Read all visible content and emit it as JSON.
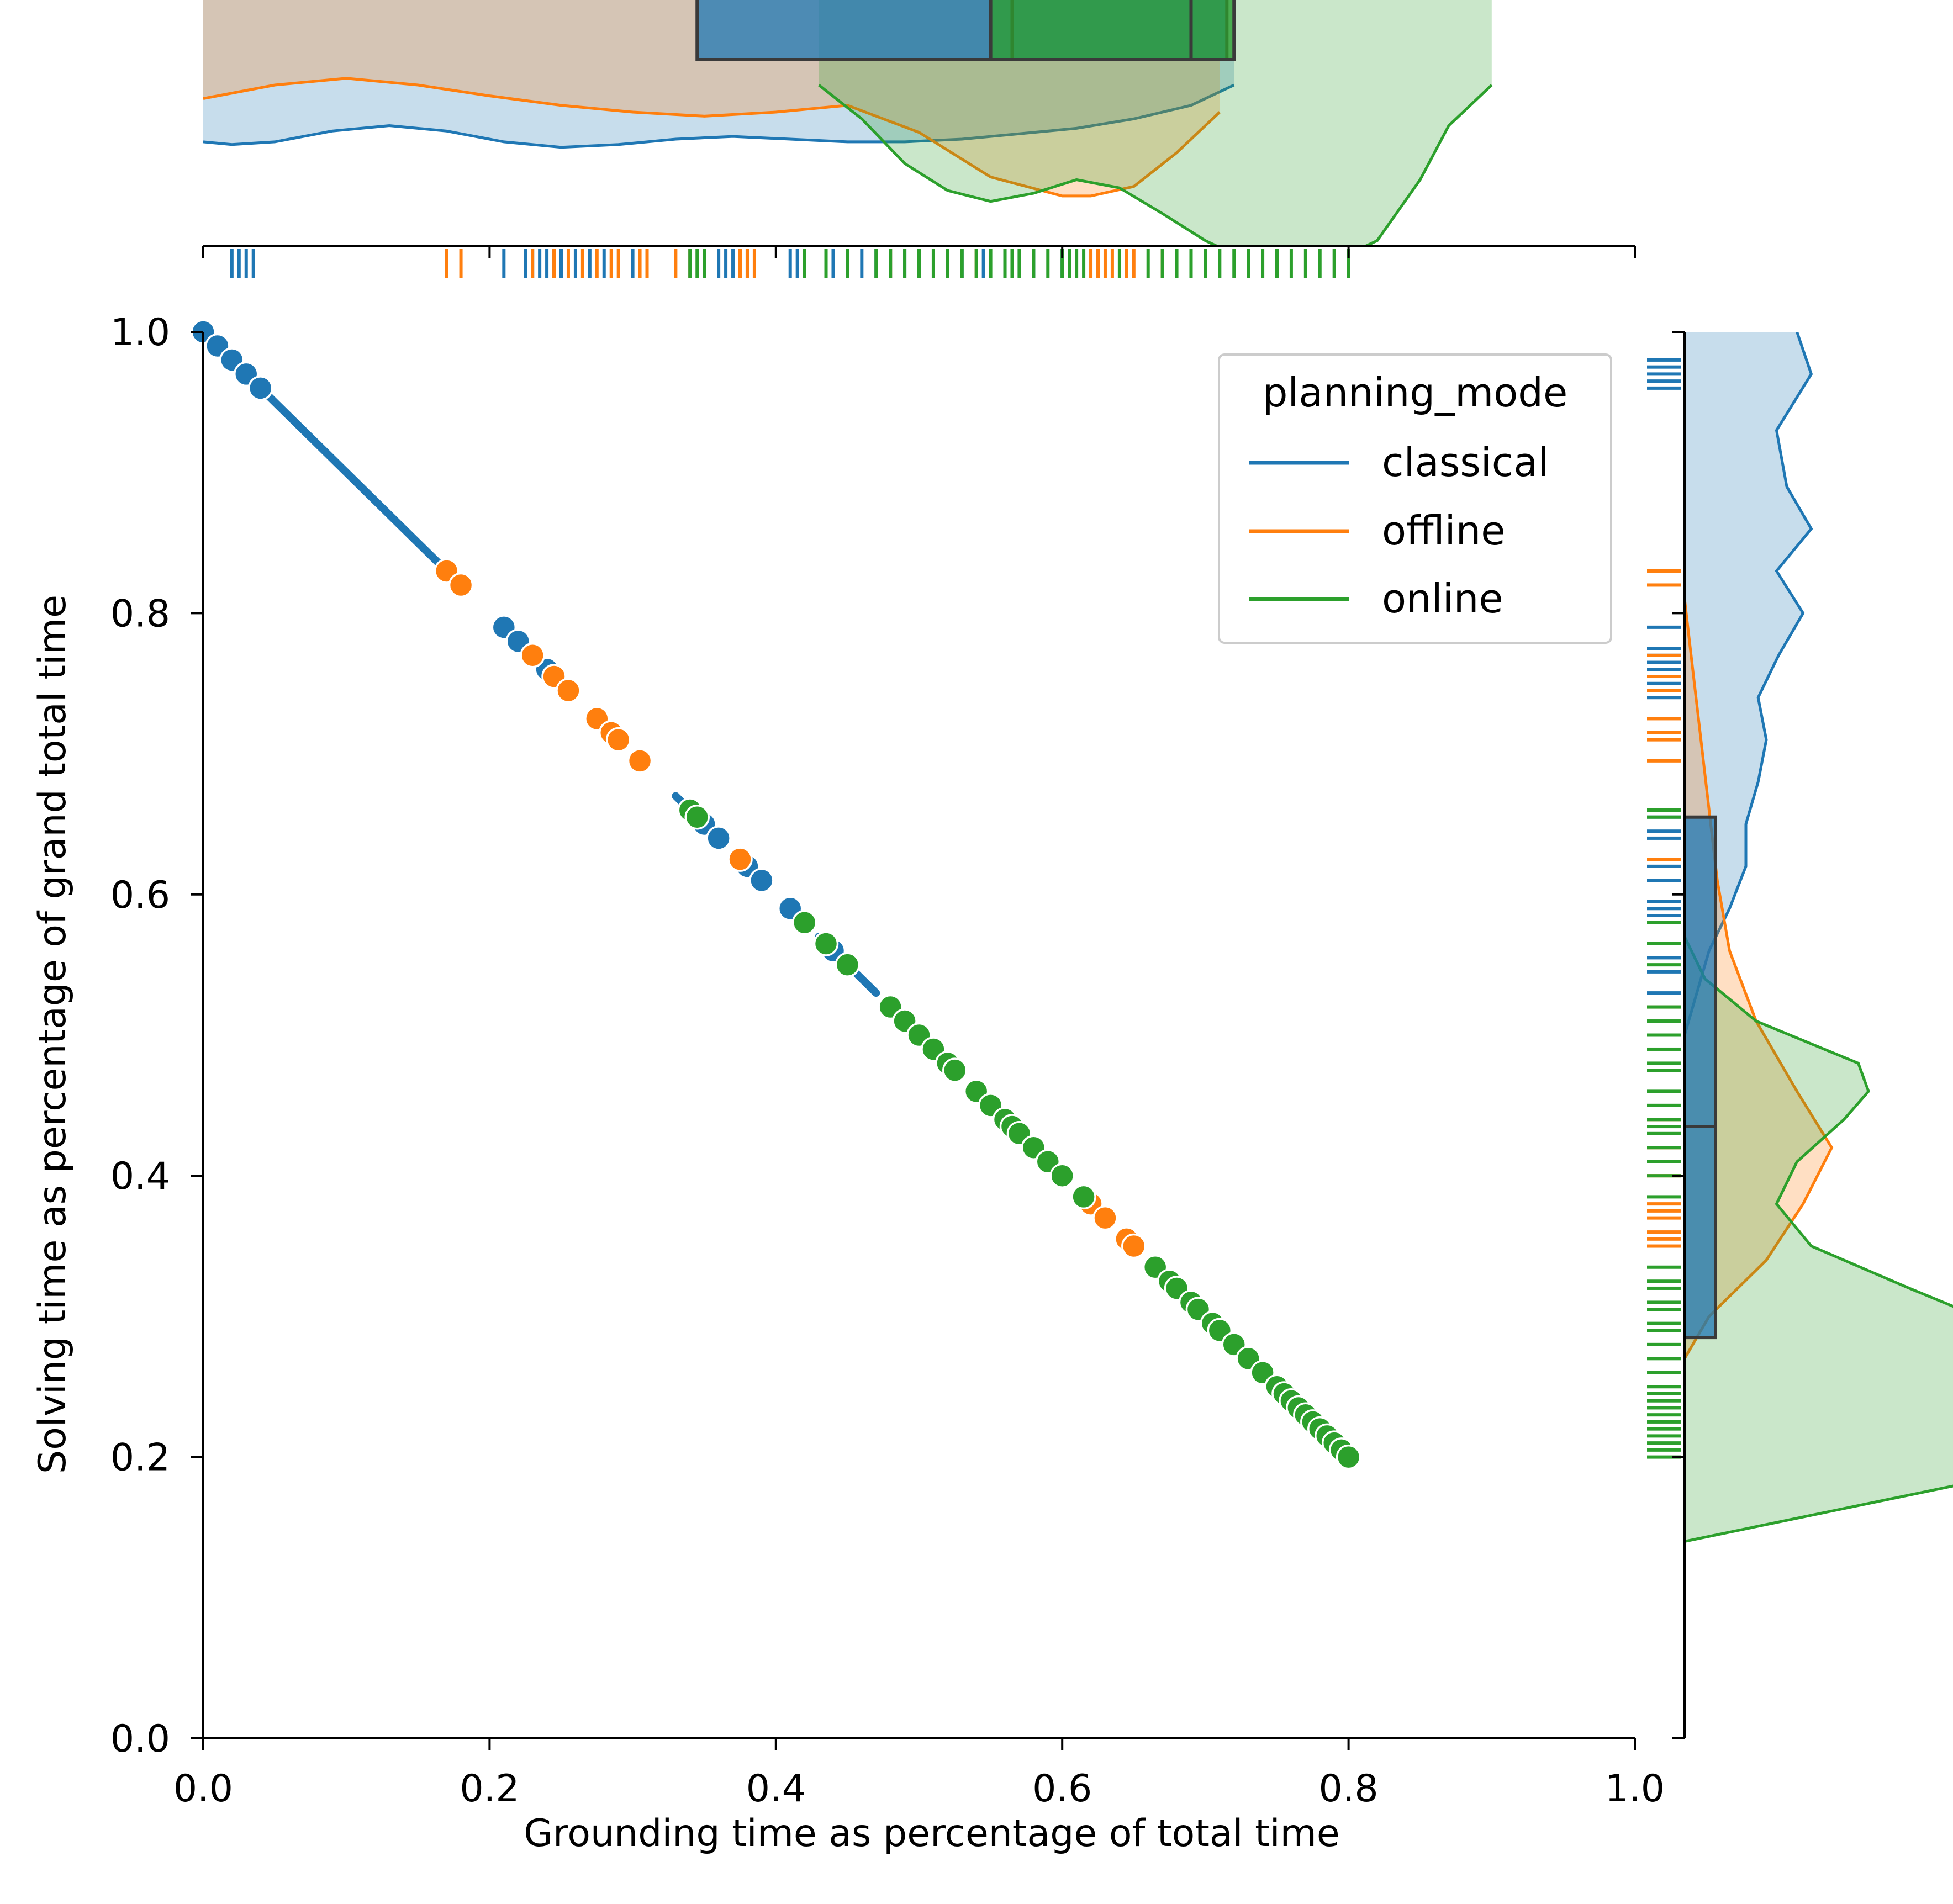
{
  "colors": {
    "classical": "#1f77b4",
    "offline": "#ff7f0e",
    "online": "#2ca02c",
    "box_edge": "#3a3a3a"
  },
  "chart_data": {
    "type": "scatter",
    "xlabel": "Grounding time as percentage of total time",
    "ylabel": "Solving time as percentage of grand total time",
    "xlim": [
      0.0,
      1.0
    ],
    "ylim": [
      0.0,
      1.0
    ],
    "x_ticks": [
      "0.0",
      "0.2",
      "0.4",
      "0.6",
      "0.8",
      "1.0"
    ],
    "y_ticks": [
      "0.0",
      "0.2",
      "0.4",
      "0.6",
      "0.8",
      "1.0"
    ],
    "grid": false,
    "legend": {
      "title": "planning_mode",
      "position": "top-right",
      "entries": [
        "classical",
        "offline",
        "online"
      ]
    },
    "series": [
      {
        "name": "classical",
        "color": "#1f77b4",
        "points": [
          [
            0.0,
            1.0
          ],
          [
            0.01,
            0.99
          ],
          [
            0.02,
            0.98
          ],
          [
            0.03,
            0.97
          ],
          [
            0.04,
            0.96
          ],
          [
            0.21,
            0.79
          ],
          [
            0.22,
            0.78
          ],
          [
            0.23,
            0.77
          ],
          [
            0.24,
            0.76
          ],
          [
            0.35,
            0.65
          ],
          [
            0.36,
            0.64
          ],
          [
            0.38,
            0.62
          ],
          [
            0.39,
            0.61
          ],
          [
            0.41,
            0.59
          ],
          [
            0.44,
            0.56
          ]
        ],
        "dense_segments": [
          [
            0.0,
            0.02
          ],
          [
            0.04,
            0.17
          ],
          [
            0.33,
            0.36
          ],
          [
            0.43,
            0.47
          ],
          [
            0.55,
            0.57
          ]
        ]
      },
      {
        "name": "offline",
        "color": "#ff7f0e",
        "points": [
          [
            0.17,
            0.83
          ],
          [
            0.18,
            0.82
          ],
          [
            0.23,
            0.77
          ],
          [
            0.245,
            0.755
          ],
          [
            0.255,
            0.745
          ],
          [
            0.275,
            0.725
          ],
          [
            0.285,
            0.715
          ],
          [
            0.29,
            0.71
          ],
          [
            0.305,
            0.695
          ],
          [
            0.375,
            0.625
          ],
          [
            0.48,
            0.52
          ],
          [
            0.62,
            0.38
          ],
          [
            0.63,
            0.37
          ],
          [
            0.645,
            0.355
          ],
          [
            0.65,
            0.35
          ]
        ]
      },
      {
        "name": "online",
        "color": "#2ca02c",
        "points": [
          [
            0.34,
            0.66
          ],
          [
            0.345,
            0.655
          ],
          [
            0.42,
            0.58
          ],
          [
            0.435,
            0.565
          ],
          [
            0.45,
            0.55
          ],
          [
            0.48,
            0.52
          ],
          [
            0.49,
            0.51
          ],
          [
            0.5,
            0.5
          ],
          [
            0.51,
            0.49
          ],
          [
            0.52,
            0.48
          ],
          [
            0.525,
            0.475
          ],
          [
            0.54,
            0.46
          ],
          [
            0.55,
            0.45
          ],
          [
            0.56,
            0.44
          ],
          [
            0.565,
            0.435
          ],
          [
            0.57,
            0.43
          ],
          [
            0.58,
            0.42
          ],
          [
            0.59,
            0.41
          ],
          [
            0.6,
            0.4
          ],
          [
            0.615,
            0.385
          ],
          [
            0.665,
            0.335
          ],
          [
            0.675,
            0.325
          ],
          [
            0.68,
            0.32
          ],
          [
            0.69,
            0.31
          ],
          [
            0.695,
            0.305
          ],
          [
            0.705,
            0.295
          ],
          [
            0.71,
            0.29
          ],
          [
            0.72,
            0.28
          ],
          [
            0.73,
            0.27
          ],
          [
            0.74,
            0.26
          ],
          [
            0.75,
            0.25
          ],
          [
            0.755,
            0.245
          ],
          [
            0.76,
            0.24
          ],
          [
            0.765,
            0.235
          ],
          [
            0.77,
            0.23
          ],
          [
            0.775,
            0.225
          ],
          [
            0.78,
            0.22
          ],
          [
            0.785,
            0.215
          ],
          [
            0.79,
            0.21
          ],
          [
            0.795,
            0.205
          ],
          [
            0.8,
            0.2
          ]
        ]
      }
    ],
    "marginal_x": {
      "boxplots": [
        {
          "name": "classical",
          "q1": 0.345,
          "median": 0.565,
          "q3": 0.715
        },
        {
          "name": "online",
          "q1": 0.55,
          "median": 0.69,
          "q3": 0.72
        }
      ],
      "kde": [
        {
          "name": "classical",
          "x": [
            0.0,
            0.02,
            0.05,
            0.09,
            0.13,
            0.17,
            0.21,
            0.25,
            0.29,
            0.33,
            0.37,
            0.41,
            0.45,
            0.49,
            0.53,
            0.57,
            0.61,
            0.65,
            0.69,
            0.72
          ],
          "density": [
            0.78,
            0.76,
            0.78,
            0.86,
            0.9,
            0.86,
            0.78,
            0.74,
            0.76,
            0.8,
            0.82,
            0.8,
            0.78,
            0.78,
            0.8,
            0.84,
            0.88,
            0.95,
            1.05,
            1.2
          ]
        },
        {
          "name": "offline",
          "x": [
            0.0,
            0.05,
            0.1,
            0.15,
            0.2,
            0.25,
            0.3,
            0.35,
            0.4,
            0.45,
            0.5,
            0.55,
            0.6,
            0.62,
            0.65,
            0.68,
            0.71
          ],
          "density": [
            1.1,
            1.2,
            1.25,
            1.2,
            1.12,
            1.05,
            1.0,
            0.97,
            1.0,
            1.05,
            0.85,
            0.52,
            0.38,
            0.38,
            0.45,
            0.7,
            1.0
          ]
        },
        {
          "name": "online",
          "x": [
            0.43,
            0.46,
            0.49,
            0.52,
            0.55,
            0.58,
            0.61,
            0.64,
            0.67,
            0.7,
            0.72,
            0.74,
            0.76,
            0.78,
            0.8,
            0.82,
            0.85,
            0.87,
            0.9
          ],
          "density": [
            1.2,
            0.95,
            0.62,
            0.42,
            0.34,
            0.4,
            0.5,
            0.44,
            0.25,
            0.05,
            -0.05,
            -0.05,
            -0.05,
            -0.05,
            -0.05,
            0.05,
            0.5,
            0.9,
            1.2
          ]
        }
      ]
    },
    "marginal_y": {
      "boxplots": [
        {
          "name": "classical",
          "q1": 0.285,
          "median": 0.435,
          "q3": 0.655
        }
      ],
      "kde": [
        {
          "name": "classical",
          "y": [
            1.0,
            0.97,
            0.93,
            0.89,
            0.86,
            0.83,
            0.8,
            0.77,
            0.74,
            0.71,
            0.68,
            0.65,
            0.62,
            0.59,
            0.56,
            0.53,
            0.5
          ],
          "density": [
            0.55,
            0.62,
            0.45,
            0.5,
            0.62,
            0.45,
            0.58,
            0.46,
            0.36,
            0.4,
            0.36,
            0.3,
            0.3,
            0.22,
            0.12,
            0.06,
            0.0
          ]
        },
        {
          "name": "offline",
          "y": [
            0.81,
            0.76,
            0.71,
            0.66,
            0.61,
            0.56,
            0.51,
            0.46,
            0.42,
            0.38,
            0.34,
            0.3,
            0.27
          ],
          "density": [
            0.0,
            0.04,
            0.08,
            0.12,
            0.16,
            0.22,
            0.35,
            0.55,
            0.72,
            0.58,
            0.4,
            0.12,
            0.0
          ]
        },
        {
          "name": "online",
          "y": [
            0.57,
            0.54,
            0.51,
            0.48,
            0.46,
            0.44,
            0.41,
            0.38,
            0.35,
            0.32,
            0.29,
            0.26,
            0.23,
            0.2,
            0.17,
            0.14
          ],
          "density": [
            0.0,
            0.1,
            0.35,
            0.85,
            0.9,
            0.78,
            0.55,
            0.45,
            0.62,
            1.1,
            1.6,
            2.0,
            2.2,
            2.0,
            1.0,
            0.0
          ]
        }
      ]
    },
    "rug_x": {
      "classical": [
        0.02,
        0.025,
        0.03,
        0.035,
        0.21,
        0.225,
        0.23,
        0.235,
        0.24,
        0.245,
        0.25,
        0.26,
        0.27,
        0.28,
        0.3,
        0.34,
        0.35,
        0.36,
        0.365,
        0.37,
        0.38,
        0.41,
        0.415,
        0.42,
        0.44,
        0.46,
        0.47,
        0.48,
        0.49,
        0.5,
        0.53,
        0.545,
        0.56,
        0.57,
        0.58,
        0.6
      ],
      "offline": [
        0.17,
        0.18,
        0.23,
        0.245,
        0.255,
        0.265,
        0.275,
        0.285,
        0.29,
        0.305,
        0.31,
        0.33,
        0.34,
        0.375,
        0.38,
        0.385,
        0.48,
        0.5,
        0.54,
        0.62,
        0.625,
        0.63,
        0.635,
        0.645,
        0.65,
        0.67
      ],
      "online": [
        0.34,
        0.345,
        0.35,
        0.42,
        0.435,
        0.45,
        0.47,
        0.48,
        0.49,
        0.5,
        0.51,
        0.52,
        0.53,
        0.54,
        0.55,
        0.56,
        0.565,
        0.57,
        0.58,
        0.59,
        0.6,
        0.605,
        0.61,
        0.615,
        0.64,
        0.66,
        0.67,
        0.68,
        0.69,
        0.7,
        0.71,
        0.72,
        0.73,
        0.74,
        0.75,
        0.76,
        0.77,
        0.78,
        0.79,
        0.8
      ]
    },
    "rug_y": {
      "classical": [
        0.96,
        0.965,
        0.97,
        0.975,
        0.98,
        0.79,
        0.775,
        0.77,
        0.765,
        0.76,
        0.75,
        0.74,
        0.66,
        0.655,
        0.645,
        0.64,
        0.625,
        0.62,
        0.61,
        0.595,
        0.59,
        0.585,
        0.58,
        0.555,
        0.545,
        0.53
      ],
      "offline": [
        0.83,
        0.82,
        0.77,
        0.755,
        0.745,
        0.725,
        0.715,
        0.71,
        0.695,
        0.625,
        0.52,
        0.44,
        0.42,
        0.41,
        0.4,
        0.38,
        0.375,
        0.37,
        0.36,
        0.355,
        0.35
      ],
      "online": [
        0.66,
        0.655,
        0.58,
        0.565,
        0.55,
        0.52,
        0.51,
        0.5,
        0.49,
        0.48,
        0.475,
        0.46,
        0.45,
        0.44,
        0.435,
        0.43,
        0.42,
        0.41,
        0.4,
        0.385,
        0.335,
        0.325,
        0.32,
        0.31,
        0.305,
        0.295,
        0.29,
        0.28,
        0.27,
        0.26,
        0.25,
        0.245,
        0.24,
        0.235,
        0.23,
        0.225,
        0.22,
        0.215,
        0.21,
        0.205,
        0.2
      ]
    }
  }
}
